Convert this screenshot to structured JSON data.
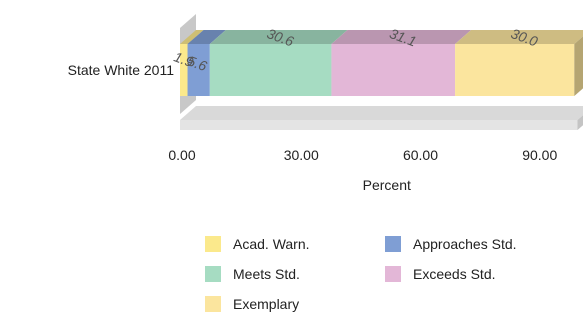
{
  "chart_data": {
    "type": "bar",
    "orientation": "horizontal",
    "stacked": true,
    "style": "3d",
    "categories": [
      "State White 2011"
    ],
    "series": [
      {
        "name": "Acad. Warn.",
        "values": [
          1.9
        ],
        "label": "1.9",
        "color": "#fbe98c"
      },
      {
        "name": "Approaches Std.",
        "values": [
          5.6
        ],
        "label": "5.6",
        "color": "#7f9ed4"
      },
      {
        "name": "Meets Std.",
        "values": [
          30.6
        ],
        "label": "30.6",
        "color": "#a6dcc2"
      },
      {
        "name": "Exceeds Std.",
        "values": [
          31.1
        ],
        "label": "31.1",
        "color": "#e3b7d7"
      },
      {
        "name": "Exemplary",
        "values": [
          30.0
        ],
        "label": "30.0",
        "color": "#fbe59e"
      }
    ],
    "xlabel": "Percent",
    "ylabel": "",
    "xlim": [
      0,
      100
    ],
    "xticks": [
      "0.00",
      "30.00",
      "60.00",
      "90.00"
    ],
    "xtick_values": [
      0,
      30,
      60,
      90
    ],
    "grid": false,
    "legend_position": "bottom"
  }
}
